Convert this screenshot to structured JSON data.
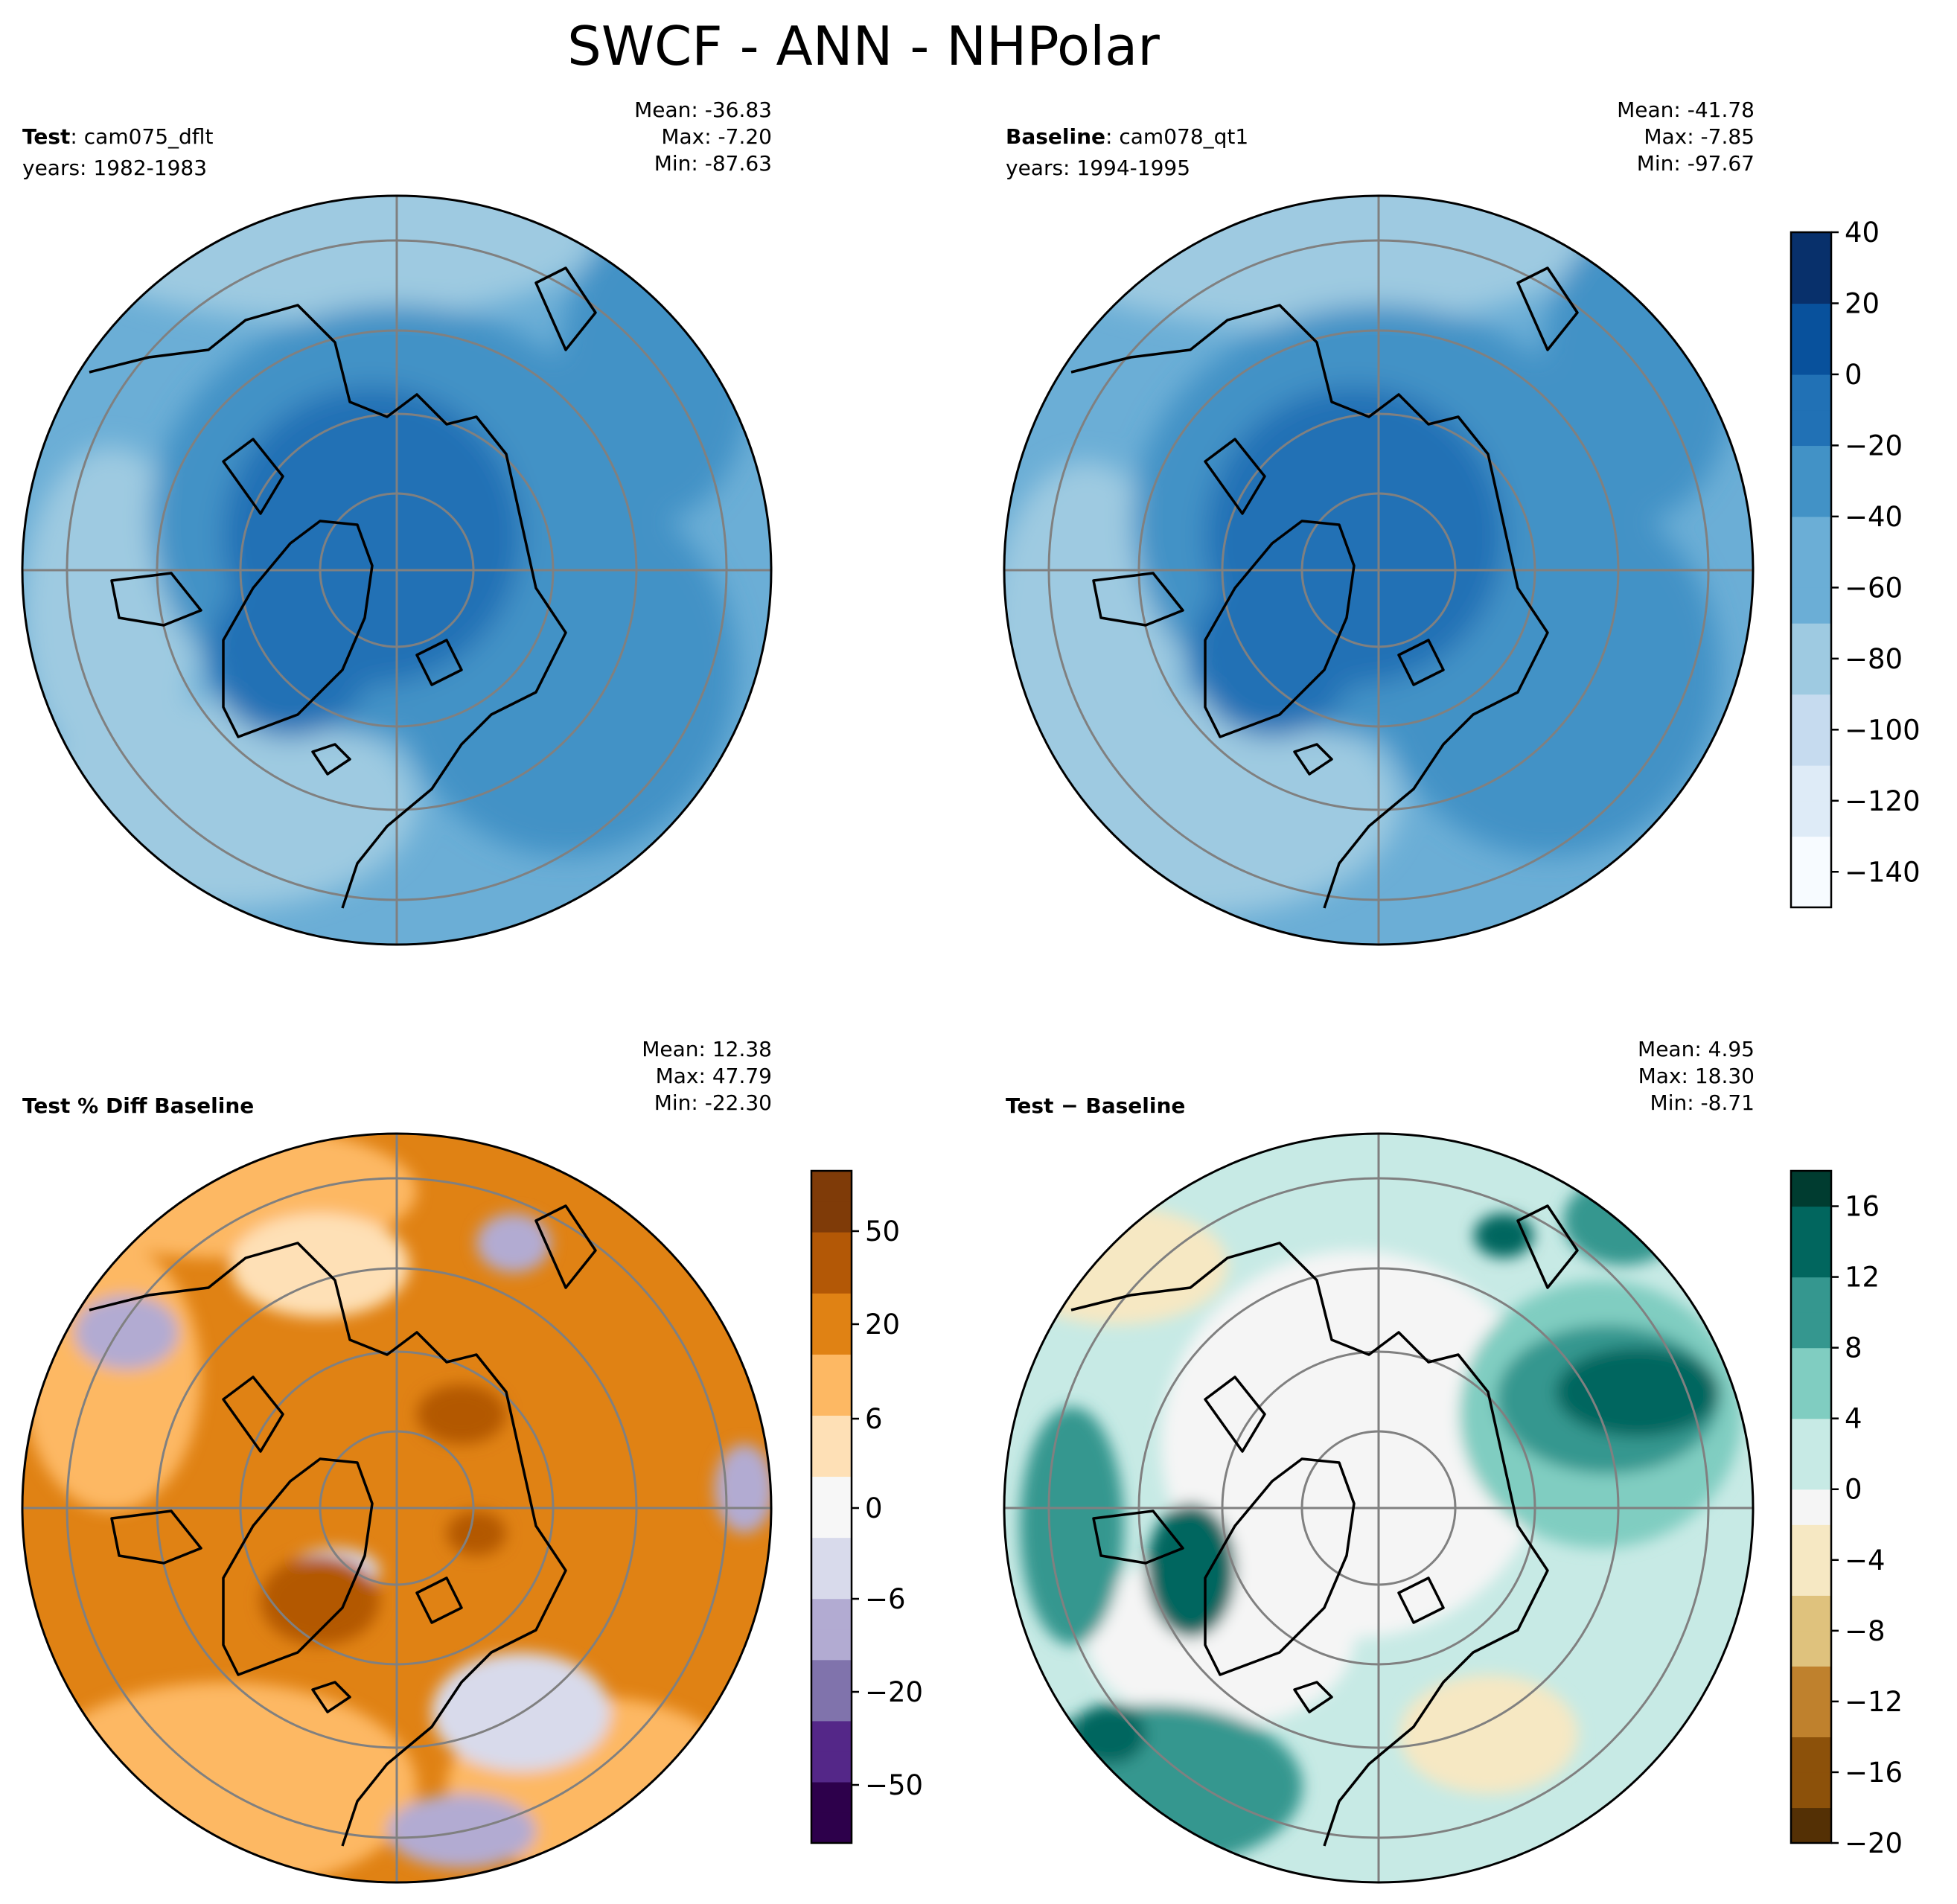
{
  "figure": {
    "title": "SWCF - ANN - NHPolar"
  },
  "panels": [
    {
      "id": "test",
      "label_bold": "Test",
      "label_sep": ":",
      "label_rest": "cam075_dflt",
      "years": "years: 1982-1983",
      "stats": {
        "mean": "Mean: -36.83",
        "max": "Max: -7.20",
        "min": "Min: -87.63"
      },
      "colormap": "Blues",
      "field_range": [
        -87.63,
        -7.2
      ]
    },
    {
      "id": "baseline",
      "label_bold": "Baseline",
      "label_sep": ":",
      "label_rest": "cam078_qt1",
      "years": "years: 1994-1995",
      "stats": {
        "mean": "Mean: -41.78",
        "max": "Max: -7.85",
        "min": "Min: -97.67"
      },
      "colormap": "Blues",
      "field_range": [
        -97.67,
        -7.85
      ]
    },
    {
      "id": "pct_diff",
      "label_bold": "Test % Diff Baseline",
      "stats": {
        "mean": "Mean: 12.38",
        "max": "Max: 47.79",
        "min": "Min: -22.30"
      },
      "colormap": "PuOr",
      "field_range": [
        -22.3,
        47.79
      ]
    },
    {
      "id": "diff",
      "label_bold": "Test − Baseline",
      "stats": {
        "mean": "Mean:  4.95",
        "max": "Max: 18.30",
        "min": "Min: -8.71"
      },
      "colormap": "BrBG",
      "field_range": [
        -8.71,
        18.3
      ]
    }
  ],
  "colorbars": {
    "top": {
      "ticks": [
        "40",
        "20",
        "0",
        "−20",
        "−40",
        "−60",
        "−80",
        "−100",
        "−120",
        "−140"
      ],
      "range": [
        -150,
        40
      ]
    },
    "pct": {
      "ticks": [
        "50",
        "20",
        "6",
        "0",
        "−6",
        "−20",
        "−50"
      ]
    },
    "diff": {
      "ticks": [
        "16",
        "12",
        "8",
        "4",
        "0",
        "−4",
        "−8",
        "−12",
        "−16",
        "−20"
      ],
      "range": [
        -20,
        18
      ]
    }
  },
  "colors": {
    "blues": [
      "#f7fbff",
      "#deebf7",
      "#c6dbef",
      "#9ecae1",
      "#6baed6",
      "#4292c6",
      "#2171b5",
      "#08519c",
      "#08306b"
    ],
    "puor": [
      "#2d004b",
      "#542788",
      "#8073ac",
      "#b2abd2",
      "#d8daeb",
      "#f7f7f7",
      "#fee0b6",
      "#fdb863",
      "#e08214",
      "#b35806",
      "#7f3b08"
    ],
    "brbg": [
      "#543005",
      "#8c510a",
      "#bf812d",
      "#dfc27d",
      "#f6e8c3",
      "#f5f5f5",
      "#c7eae5",
      "#80cdc1",
      "#35978f",
      "#01665e",
      "#003c30"
    ],
    "coastline": "#000000",
    "gridline": "#808080"
  }
}
